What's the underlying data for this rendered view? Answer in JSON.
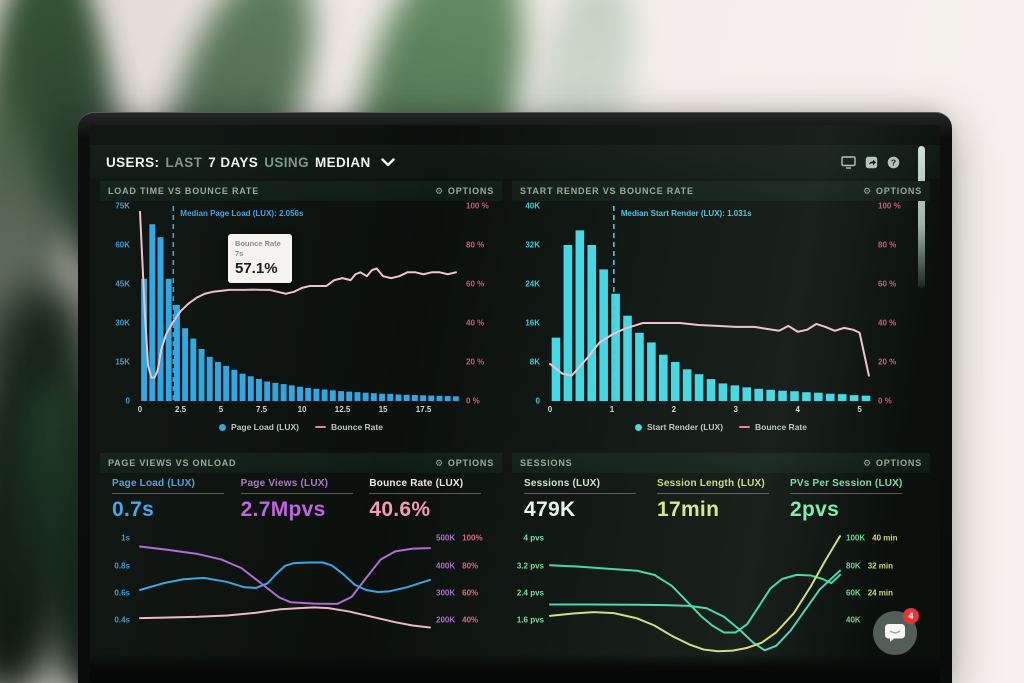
{
  "colors": {
    "bars_blue": "#2fa6e2",
    "bars_cyan": "#3fd8e6",
    "bounce_line_pink": "#f4c0cc",
    "median_blue": "#3f9fe0",
    "median_cyan": "#4cc5e4",
    "page_views_purple": "#b06ad0",
    "sessions_teal": "#3fd9a4",
    "session_length_lime": "#cde07a",
    "badge_red": "#e6343b"
  },
  "header": {
    "parts": [
      {
        "text": "USERS:"
      },
      {
        "text": "LAST"
      },
      {
        "text": "7 DAYS"
      },
      {
        "text": "USING"
      },
      {
        "text": "MEDIAN"
      }
    ],
    "help_glyph": "?"
  },
  "panels": [
    {
      "title": "LOAD TIME VS BOUNCE RATE",
      "options": "OPTIONS",
      "tooltip": {
        "series": "Bounce Rate",
        "x_label": "7s",
        "value": "57.1%"
      },
      "legend": [
        {
          "label": "Page Load (LUX)"
        },
        {
          "label": "Bounce Rate"
        }
      ]
    },
    {
      "title": "START RENDER VS BOUNCE RATE",
      "options": "OPTIONS",
      "legend": [
        {
          "label": "Start Render (LUX)"
        },
        {
          "label": "Bounce Rate"
        }
      ]
    },
    {
      "title": "PAGE VIEWS VS ONLOAD",
      "options": "OPTIONS",
      "metrics": [
        {
          "label": "Page Load (LUX)",
          "value": "0.7s"
        },
        {
          "label": "Page Views (LUX)",
          "value": "2.7Mpvs"
        },
        {
          "label": "Bounce Rate (LUX)",
          "value": "40.6%"
        }
      ]
    },
    {
      "title": "SESSIONS",
      "options": "OPTIONS",
      "metrics": [
        {
          "label": "Sessions (LUX)",
          "value": "479K"
        },
        {
          "label": "Session Length (LUX)",
          "value": "17min"
        },
        {
          "label": "PVs Per Session (LUX)",
          "value": "2pvs"
        }
      ]
    }
  ],
  "chat": {
    "badge": "4"
  },
  "chart_data": [
    {
      "type": "bar",
      "title": "LOAD TIME VS BOUNCE RATE",
      "xrange": [
        0,
        19.75
      ],
      "x_ticks": [
        "0",
        "2.5",
        "5",
        "7.5",
        "10",
        "12.5",
        "15",
        "17.5"
      ],
      "y_left": {
        "labels": [
          "75K",
          "60K",
          "45K",
          "30K",
          "15K",
          "0"
        ],
        "max": 75
      },
      "y_right": {
        "labels": [
          "100 %",
          "80 %",
          "60 %",
          "40 %",
          "20 %",
          "0 %"
        ]
      },
      "bars": {
        "name": "Page Load (LUX)",
        "color": "#2fa6e2",
        "max": 75,
        "bar_width_s": 0.5,
        "values": [
          47,
          68,
          63,
          47,
          37,
          28,
          24,
          20,
          17,
          15,
          13.5,
          12,
          10.5,
          9.5,
          8.5,
          7.5,
          7,
          6.5,
          6,
          5.5,
          5,
          4.7,
          4.4,
          4.1,
          3.8,
          3.6,
          3.4,
          3.2,
          3,
          2.8,
          2.7,
          2.5,
          2.4,
          2.3,
          2.2,
          2.1,
          2,
          1.9,
          1.8
        ]
      },
      "series": [
        {
          "name": "Bounce Rate",
          "color": "#f4c0cc",
          "yrange": [
            0,
            100
          ],
          "points": [
            [
              0,
              97
            ],
            [
              0.3,
              45
            ],
            [
              0.5,
              18
            ],
            [
              0.7,
              12
            ],
            [
              0.9,
              12
            ],
            [
              1.1,
              16
            ],
            [
              1.3,
              26
            ],
            [
              1.6,
              34
            ],
            [
              2,
              40
            ],
            [
              2.5,
              46
            ],
            [
              3,
              50
            ],
            [
              3.5,
              53
            ],
            [
              4,
              55
            ],
            [
              4.5,
              56
            ],
            [
              5,
              56.5
            ],
            [
              5.5,
              57
            ],
            [
              6.5,
              57
            ],
            [
              7,
              57.1
            ],
            [
              7.5,
              57
            ],
            [
              8,
              57
            ],
            [
              8.5,
              56
            ],
            [
              9,
              55
            ],
            [
              9.5,
              56
            ],
            [
              10,
              58
            ],
            [
              10.5,
              59
            ],
            [
              11.5,
              59
            ],
            [
              12,
              62
            ],
            [
              12.5,
              63
            ],
            [
              13,
              62
            ],
            [
              13.3,
              65
            ],
            [
              13.6,
              66
            ],
            [
              14,
              64
            ],
            [
              14.3,
              67
            ],
            [
              14.6,
              68
            ],
            [
              15,
              64
            ],
            [
              15.5,
              63
            ],
            [
              16,
              64
            ],
            [
              16.5,
              66
            ],
            [
              17,
              66
            ],
            [
              17.5,
              65
            ],
            [
              18,
              66
            ],
            [
              18.5,
              66
            ],
            [
              19,
              65
            ],
            [
              19.5,
              66
            ]
          ]
        }
      ],
      "median": {
        "x": 2.056,
        "label": "Median Page Load (LUX): 2.056s",
        "color": "#3f9fe0"
      }
    },
    {
      "type": "bar",
      "title": "START RENDER VS BOUNCE RATE",
      "xrange": [
        0,
        5.2
      ],
      "x_ticks": [
        "0",
        "1",
        "2",
        "3",
        "4",
        "5"
      ],
      "y_left": {
        "labels": [
          "40K",
          "32K",
          "24K",
          "16K",
          "8K",
          "0"
        ],
        "max": 40
      },
      "y_right": {
        "labels": [
          "100 %",
          "80 %",
          "60 %",
          "40 %",
          "20 %",
          "0 %"
        ]
      },
      "bars": {
        "name": "Start Render (LUX)",
        "color": "#3fd8e6",
        "max": 40,
        "values": [
          13,
          32,
          35,
          32,
          27,
          22,
          17.5,
          14,
          12,
          9.5,
          8,
          6.5,
          5.5,
          4.5,
          3.6,
          3.2,
          2.8,
          2.5,
          2.3,
          2.1,
          2,
          1.8,
          1.7,
          1.5,
          1.4,
          1.2,
          1.1
        ]
      },
      "series": [
        {
          "name": "Bounce Rate",
          "color": "#f4c0cc",
          "yrange": [
            0,
            100
          ],
          "points": [
            [
              0,
              19
            ],
            [
              0.2,
              14
            ],
            [
              0.35,
              13
            ],
            [
              0.6,
              22
            ],
            [
              0.8,
              30
            ],
            [
              1,
              34
            ],
            [
              1.2,
              37
            ],
            [
              1.5,
              40
            ],
            [
              1.8,
              40
            ],
            [
              2.1,
              40
            ],
            [
              2.4,
              39
            ],
            [
              2.7,
              38.5
            ],
            [
              3,
              38
            ],
            [
              3.3,
              38
            ],
            [
              3.5,
              37
            ],
            [
              3.7,
              36
            ],
            [
              3.85,
              38.5
            ],
            [
              4,
              35.5
            ],
            [
              4.15,
              36.5
            ],
            [
              4.3,
              39.5
            ],
            [
              4.45,
              38
            ],
            [
              4.6,
              36
            ],
            [
              4.75,
              37.5
            ],
            [
              4.9,
              36.5
            ],
            [
              5,
              35
            ],
            [
              5.15,
              13
            ]
          ]
        }
      ],
      "median": {
        "x": 1.031,
        "label": "Median Start Render (LUX): 1.031s",
        "color": "#4cc5e4"
      }
    },
    {
      "type": "line",
      "title": "PAGE VIEWS VS ONLOAD",
      "xrange": [
        0,
        1
      ],
      "y_left": {
        "labels": [
          "1s",
          "0.8s",
          "0.6s",
          "0.4s"
        ]
      },
      "y_right": {
        "col1": [
          "500K",
          "400K",
          "300K",
          "200K"
        ],
        "col2": [
          "100%",
          "80%",
          "60%",
          "40%"
        ]
      },
      "series": [
        {
          "name": "Page Views (LUX)",
          "color": "#b06ad0",
          "yrange": [
            75,
            525
          ],
          "points": [
            [
              0,
              468
            ],
            [
              0.1,
              455
            ],
            [
              0.2,
              440
            ],
            [
              0.28,
              420
            ],
            [
              0.35,
              388
            ],
            [
              0.42,
              330
            ],
            [
              0.48,
              280
            ],
            [
              0.52,
              262
            ],
            [
              0.6,
              257
            ],
            [
              0.68,
              256
            ],
            [
              0.73,
              282
            ],
            [
              0.78,
              352
            ],
            [
              0.83,
              420
            ],
            [
              0.88,
              450
            ],
            [
              0.94,
              460
            ],
            [
              1,
              462
            ]
          ]
        },
        {
          "name": "Page Load (LUX)",
          "color": "#3da4e4",
          "yrange": [
            0.13,
            1.04
          ],
          "points": [
            [
              0,
              0.6
            ],
            [
              0.08,
              0.65
            ],
            [
              0.15,
              0.68
            ],
            [
              0.22,
              0.69
            ],
            [
              0.3,
              0.66
            ],
            [
              0.36,
              0.62
            ],
            [
              0.4,
              0.615
            ],
            [
              0.44,
              0.65
            ],
            [
              0.47,
              0.72
            ],
            [
              0.5,
              0.78
            ],
            [
              0.53,
              0.8
            ],
            [
              0.58,
              0.805
            ],
            [
              0.63,
              0.805
            ],
            [
              0.66,
              0.785
            ],
            [
              0.7,
              0.72
            ],
            [
              0.74,
              0.64
            ],
            [
              0.78,
              0.6
            ],
            [
              0.82,
              0.585
            ],
            [
              0.86,
              0.59
            ],
            [
              0.92,
              0.62
            ],
            [
              1,
              0.675
            ]
          ]
        },
        {
          "name": "Bounce Rate (LUX)",
          "color": "#f0b6c4",
          "yrange": [
            14,
            105
          ],
          "points": [
            [
              0,
              40
            ],
            [
              0.1,
              40.5
            ],
            [
              0.2,
              41
            ],
            [
              0.3,
              42
            ],
            [
              0.4,
              44
            ],
            [
              0.48,
              46.5
            ],
            [
              0.55,
              47.5
            ],
            [
              0.6,
              48
            ],
            [
              0.65,
              47.5
            ],
            [
              0.72,
              45
            ],
            [
              0.8,
              41
            ],
            [
              0.88,
              37
            ],
            [
              0.94,
              34.5
            ],
            [
              1,
              33
            ]
          ]
        }
      ]
    },
    {
      "type": "line",
      "title": "SESSIONS",
      "xrange": [
        0,
        1
      ],
      "y_left": {
        "labels": [
          "4 pvs",
          "3.2 pvs",
          "2.4 pvs",
          "1.6 pvs"
        ]
      },
      "y_right": {
        "col1": [
          "100K",
          "80K",
          "60K",
          "40K"
        ],
        "col2": [
          "40 min",
          "32 min",
          "24 min",
          ""
        ]
      },
      "series": [
        {
          "name": "Sessions (LUX)",
          "color": "#3fd9a4",
          "yrange": [
            16,
            105
          ],
          "points": [
            [
              0,
              80
            ],
            [
              0.1,
              79
            ],
            [
              0.2,
              77.5
            ],
            [
              0.3,
              76
            ],
            [
              0.36,
              73
            ],
            [
              0.42,
              65
            ],
            [
              0.48,
              52
            ],
            [
              0.52,
              43
            ],
            [
              0.56,
              36
            ],
            [
              0.6,
              31
            ],
            [
              0.64,
              31
            ],
            [
              0.68,
              37
            ],
            [
              0.72,
              50
            ],
            [
              0.76,
              63
            ],
            [
              0.8,
              70
            ],
            [
              0.85,
              73
            ],
            [
              0.9,
              72.5
            ],
            [
              0.94,
              70
            ],
            [
              0.97,
              67
            ],
            [
              1,
              73
            ]
          ]
        },
        {
          "name": "PVs Per Session (LUX)",
          "color": "#46d6b4",
          "yrange": [
            0.64,
            4.21
          ],
          "points": [
            [
              0,
              2.06
            ],
            [
              0.15,
              2.06
            ],
            [
              0.3,
              2.05
            ],
            [
              0.4,
              2.04
            ],
            [
              0.48,
              2.02
            ],
            [
              0.54,
              1.95
            ],
            [
              0.6,
              1.7
            ],
            [
              0.65,
              1.35
            ],
            [
              0.7,
              0.95
            ],
            [
              0.74,
              0.72
            ],
            [
              0.78,
              0.85
            ],
            [
              0.83,
              1.3
            ],
            [
              0.88,
              1.9
            ],
            [
              0.93,
              2.5
            ],
            [
              1,
              3.05
            ]
          ]
        },
        {
          "name": "Session Length (LUX)",
          "color": "#cde07a",
          "yrange": [
            6.5,
            42
          ],
          "points": [
            [
              0,
              17.3
            ],
            [
              0.08,
              18
            ],
            [
              0.15,
              18.4
            ],
            [
              0.22,
              18.1
            ],
            [
              0.3,
              16.6
            ],
            [
              0.36,
              14.5
            ],
            [
              0.42,
              11.5
            ],
            [
              0.48,
              9
            ],
            [
              0.53,
              7.5
            ],
            [
              0.58,
              7
            ],
            [
              0.63,
              7.2
            ],
            [
              0.68,
              8
            ],
            [
              0.73,
              9.5
            ],
            [
              0.78,
              12.5
            ],
            [
              0.84,
              18
            ],
            [
              0.9,
              26
            ],
            [
              0.95,
              33.5
            ],
            [
              1,
              40.5
            ]
          ]
        }
      ]
    }
  ]
}
